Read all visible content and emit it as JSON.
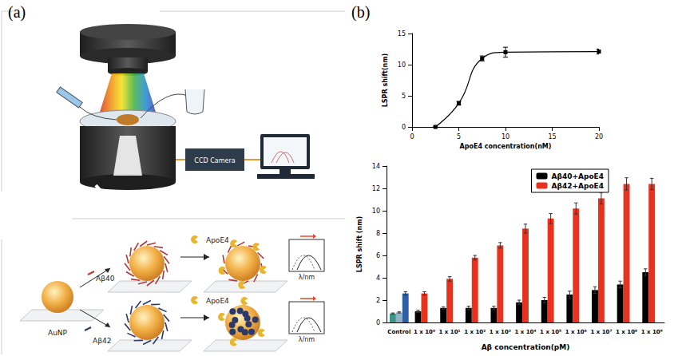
{
  "panel_labels": [
    "(a)",
    "(b)"
  ],
  "diagram": {
    "camera_label": "CCD Camera",
    "substrate_label": "AuNP",
    "peptides": [
      "Aβ40",
      "Aβ42"
    ],
    "binder": "ApoE4",
    "spectrum_axis": "λ/nm"
  },
  "chart_data": [
    {
      "type": "line",
      "x_label": "ApoE4 concentration(nM)",
      "y_label": "LSPR shift(nm)",
      "x": [
        2.5,
        5,
        7.5,
        10,
        20
      ],
      "values": [
        0,
        3.8,
        11,
        12,
        12.1
      ],
      "errors": [
        0,
        0.3,
        0.4,
        0.8,
        0.4
      ],
      "xlim": [
        0,
        20
      ],
      "xticks": [
        0,
        5,
        10,
        15,
        20
      ],
      "ylim": [
        0,
        15
      ],
      "yticks": [
        0,
        5,
        10,
        15
      ],
      "color": "#000000",
      "marker": "square",
      "line_style": "solid"
    },
    {
      "type": "bar",
      "x_label": "Aβ concentration(pM)",
      "y_label": "LSPR shift (nm)",
      "categories": [
        "Control",
        "1 x 10⁰",
        "1 x 10¹",
        "1 x 10²",
        "1 x 10³",
        "1 x 10⁴",
        "1 x 10⁵",
        "1 x 10⁶",
        "1 x 10⁷",
        "1 x 10⁸",
        "1 x 10⁹"
      ],
      "series": [
        {
          "name": "Aβ40+ApoE4",
          "color": "#000000",
          "colors": [
            "#3f9585",
            "#000000",
            "#000000",
            "#000000",
            "#000000",
            "#000000",
            "#000000",
            "#000000",
            "#000000",
            "#000000",
            "#000000"
          ],
          "values": [
            0.8,
            1.0,
            1.3,
            1.3,
            1.3,
            1.8,
            2.0,
            2.5,
            2.9,
            3.4,
            4.5
          ],
          "errors": [
            0.05,
            0.1,
            0.1,
            0.15,
            0.15,
            0.2,
            0.25,
            0.3,
            0.3,
            0.3,
            0.3
          ]
        },
        {
          "name": "Aβ42+ApoE4",
          "color": "#e8321e",
          "colors": [
            "#8fb4c6",
            "#e8321e",
            "#e8321e",
            "#e8321e",
            "#e8321e",
            "#e8321e",
            "#e8321e",
            "#e8321e",
            "#e8321e",
            "#e8321e",
            "#e8321e"
          ],
          "values": [
            0.9,
            2.6,
            3.9,
            5.8,
            6.9,
            8.4,
            9.3,
            10.2,
            11.1,
            12.4,
            12.4
          ],
          "errors": [
            0.05,
            0.15,
            0.2,
            0.2,
            0.25,
            0.4,
            0.45,
            0.5,
            0.5,
            0.55,
            0.5
          ]
        },
        {
          "color": "#2f5fa5",
          "values": [
            2.6,
            null,
            null,
            null,
            null,
            null,
            null,
            null,
            null,
            null,
            null
          ],
          "errors": [
            0.15,
            null,
            null,
            null,
            null,
            null,
            null,
            null,
            null,
            null,
            null
          ]
        }
      ],
      "ylim": [
        0,
        14
      ],
      "yticks": [
        0,
        2,
        4,
        6,
        8,
        10,
        12,
        14
      ],
      "legend": "top"
    }
  ]
}
